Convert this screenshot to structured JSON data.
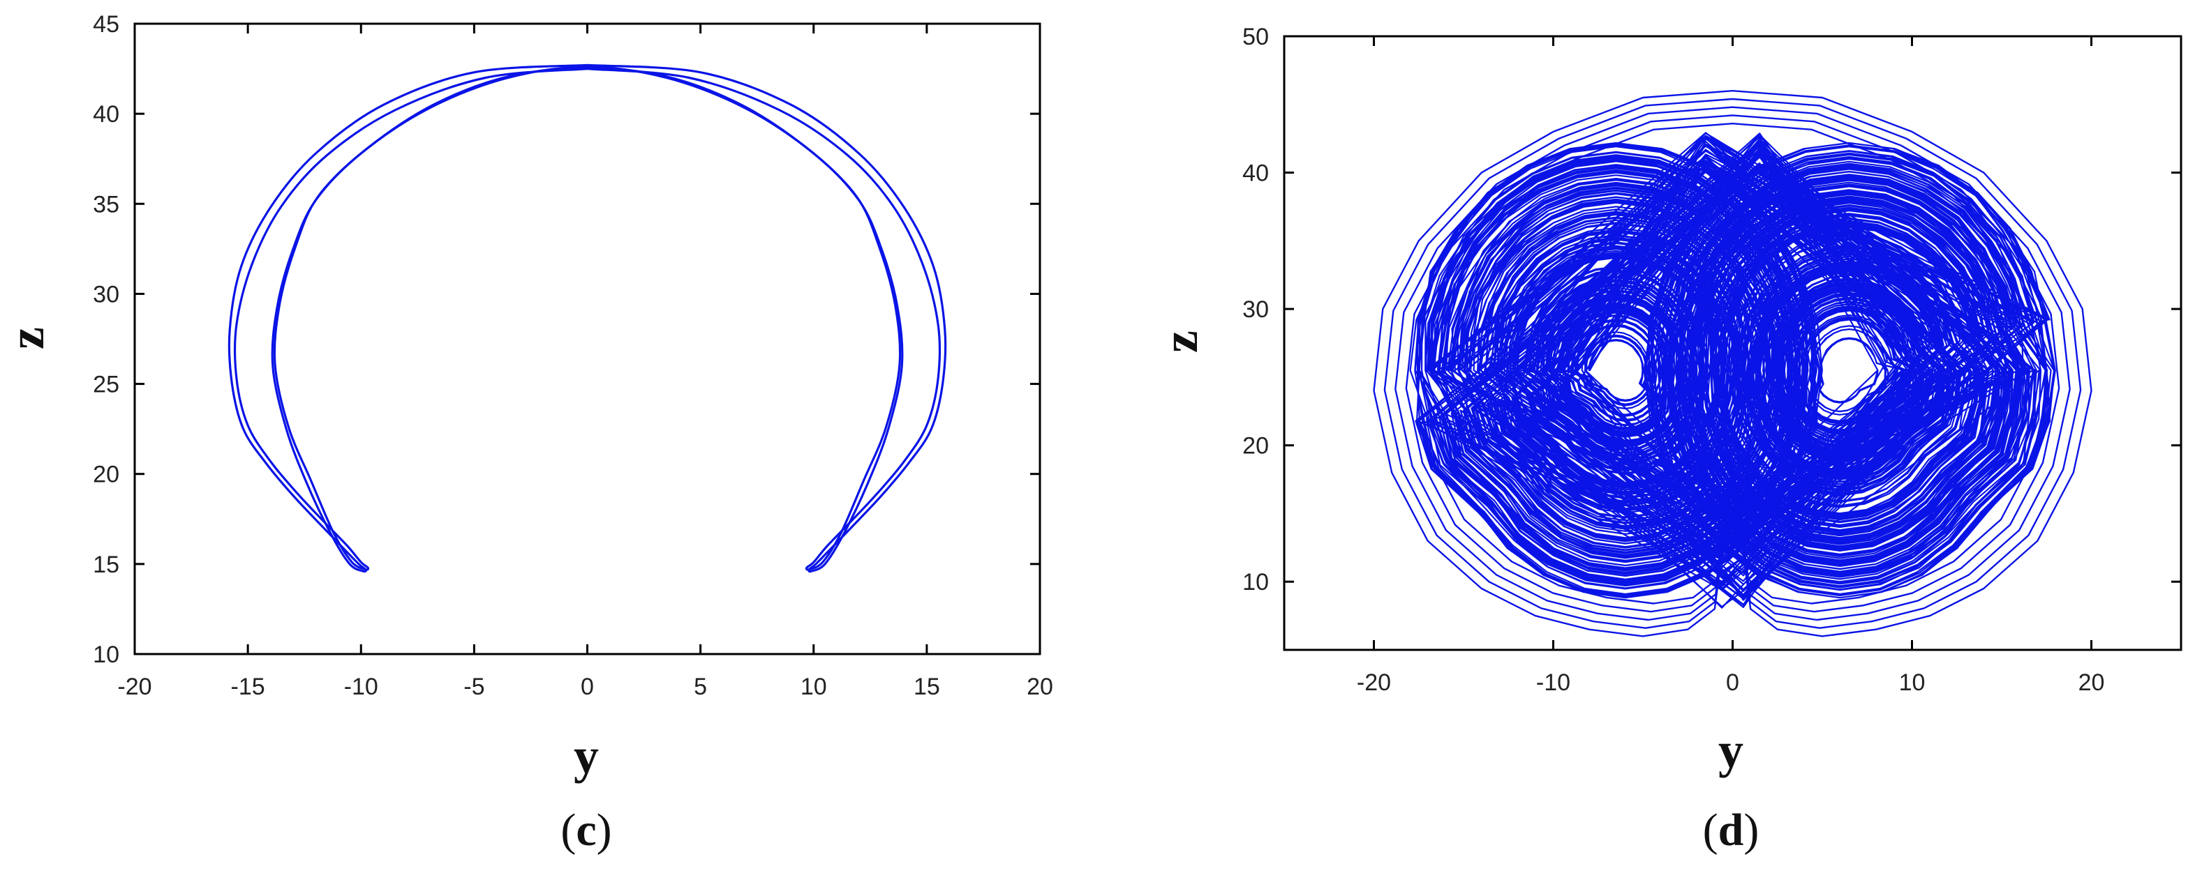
{
  "colors": {
    "line": "#0a14e6",
    "axis": "#000000",
    "background": "#ffffff"
  },
  "chart_data": [
    {
      "type": "line",
      "panel_label_open": "(",
      "panel_label_letter": "c",
      "panel_label_close": ")",
      "xlabel": "y",
      "ylabel": "z",
      "xlim": [
        -20,
        20
      ],
      "ylim": [
        10,
        45
      ],
      "xticks": [
        -20,
        -15,
        -10,
        -5,
        0,
        5,
        10,
        15,
        20
      ],
      "xtick_labels": [
        "-20",
        "-15",
        "-10",
        "-5",
        "0",
        "5",
        "10",
        "15",
        "20"
      ],
      "yticks": [
        10,
        15,
        20,
        25,
        30,
        35,
        40,
        45
      ],
      "ytick_labels": [
        "10",
        "15",
        "20",
        "25",
        "30",
        "35",
        "40",
        "45"
      ],
      "grid": false,
      "series": [
        {
          "style": "closed-curve",
          "loops": [
            {
              "x": [
                0,
                5,
                9,
                12,
                14,
                15.3,
                15.8,
                15.7,
                15.2,
                14.2,
                13,
                11.8,
                10.8,
                10.1,
                9.8,
                9.9,
                10.5,
                11.3,
                12.4,
                13.3,
                13.9,
                13.7,
                13,
                12,
                10,
                7,
                3.5,
                0,
                -3.5,
                -7,
                -10,
                -12,
                -13,
                -13.7,
                -13.9,
                -13.3,
                -12.4,
                -11.3,
                -10.5,
                -9.9,
                -9.8,
                -10.1,
                -10.8,
                -11.8,
                -13,
                -14.2,
                -15.2,
                -15.7,
                -15.8,
                -15.3,
                -14,
                -12,
                -9,
                -5,
                0
              ],
              "y": [
                42.7,
                42.3,
                40.5,
                37.8,
                34.8,
                31.5,
                28,
                25,
                22.5,
                20.6,
                18.8,
                17.2,
                15.9,
                15,
                14.7,
                14.6,
                15,
                16.6,
                19.5,
                22.5,
                26,
                29.3,
                32.5,
                35.2,
                37.8,
                40.3,
                42,
                42.6,
                42,
                40.3,
                37.8,
                35.2,
                32.5,
                29.3,
                26,
                22.5,
                19.5,
                16.6,
                15,
                14.6,
                14.7,
                15,
                15.9,
                17.2,
                18.8,
                20.6,
                22.5,
                25,
                28,
                31.5,
                34.8,
                37.8,
                40.5,
                42.3,
                42.7
              ]
            },
            {
              "x": [
                0,
                4.5,
                8.5,
                11.5,
                13.5,
                14.8,
                15.5,
                15.5,
                15,
                14,
                12.8,
                11.6,
                10.6,
                10,
                9.7,
                9.8,
                10.4,
                11.2,
                12.2,
                13.2,
                13.8,
                13.6,
                12.9,
                11.9,
                9.8,
                6.8,
                3.4,
                0,
                -3.4,
                -6.8,
                -9.8,
                -11.9,
                -12.9,
                -13.6,
                -13.8,
                -13.2,
                -12.2,
                -11.2,
                -10.4,
                -9.8,
                -9.7,
                -10,
                -10.6,
                -11.6,
                -12.8,
                -14,
                -15,
                -15.5,
                -15.5,
                -14.8,
                -13.5,
                -11.5,
                -8.5,
                -4.5,
                0
              ],
              "y": [
                42.5,
                42,
                40.2,
                37.7,
                34.9,
                31.7,
                28.3,
                25.3,
                22.7,
                20.7,
                18.9,
                17.3,
                16,
                15.1,
                14.8,
                14.7,
                15.1,
                16.7,
                19.6,
                22.6,
                26.1,
                29.4,
                32.6,
                35.4,
                38,
                40.5,
                42.1,
                42.5,
                42.1,
                40.5,
                38,
                35.4,
                32.6,
                29.4,
                26.1,
                22.6,
                19.6,
                16.7,
                15.1,
                14.7,
                14.8,
                15.1,
                16,
                17.3,
                18.9,
                20.7,
                22.7,
                25.3,
                28.3,
                31.7,
                34.9,
                37.7,
                40.2,
                42,
                42.5
              ]
            }
          ]
        }
      ]
    },
    {
      "type": "line",
      "panel_label_open": "(",
      "panel_label_letter": "d",
      "panel_label_close": ")",
      "xlabel": "y",
      "ylabel": "z",
      "xlim": [
        -25,
        25
      ],
      "ylim": [
        5,
        50
      ],
      "xticks": [
        -20,
        -10,
        0,
        10,
        20
      ],
      "xtick_labels": [
        "-20",
        "-10",
        "0",
        "10",
        "20"
      ],
      "yticks": [
        10,
        20,
        30,
        40,
        50
      ],
      "ytick_labels": [
        "10",
        "20",
        "30",
        "40",
        "50"
      ],
      "grid": false,
      "series": [
        {
          "style": "chaotic-trajectory",
          "lobe_centers": [
            [
              -6.5,
              25.5
            ],
            [
              6.5,
              25.5
            ]
          ],
          "outer_envelope": {
            "x": [
              0,
              5,
              10,
              14,
              17.5,
              19.5,
              20,
              19,
              17,
              14,
              11,
              8,
              5,
              2.5,
              1,
              0,
              -1,
              -2.5,
              -5,
              -8,
              -11,
              -14,
              -17,
              -19,
              -20,
              -19.5,
              -17.5,
              -14,
              -10,
              -5,
              0
            ],
            "y": [
              46,
              45.5,
              43,
              40,
              35,
              30,
              24,
              18,
              13,
              9.5,
              7.5,
              6.5,
              6,
              6.5,
              8,
              18,
              8,
              6.5,
              6,
              6.5,
              7.5,
              9.5,
              13,
              18,
              24,
              30,
              35,
              40,
              43,
              45.5,
              46
            ]
          }
        }
      ]
    }
  ]
}
